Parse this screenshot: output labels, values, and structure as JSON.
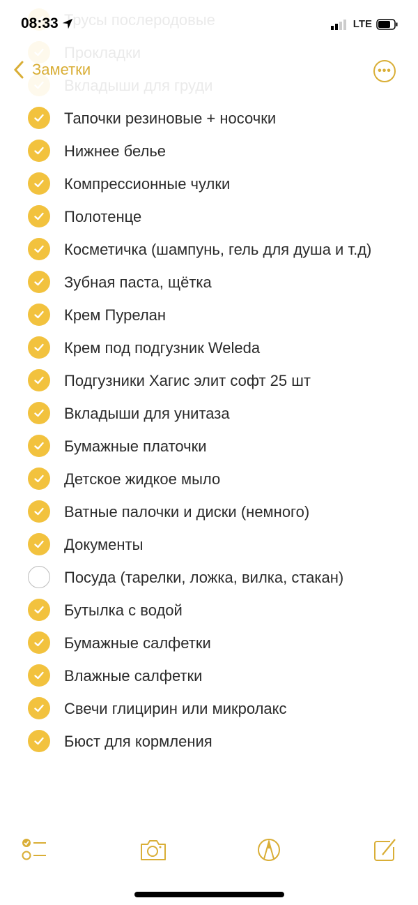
{
  "status": {
    "time": "08:33",
    "network": "LTE"
  },
  "nav": {
    "back_label": "Заметки"
  },
  "colors": {
    "accent": "#D9AE36",
    "checked": "#F2C23E"
  },
  "items": [
    {
      "text": "Трусы послеродовые",
      "checked": true
    },
    {
      "text": "Прокладки",
      "checked": true
    },
    {
      "text": "Вкладыши для груди",
      "checked": true
    },
    {
      "text": "Тапочки резиновые + носочки",
      "checked": true
    },
    {
      "text": "Нижнее белье",
      "checked": true
    },
    {
      "text": "Компрессионные чулки",
      "checked": true
    },
    {
      "text": "Полотенце",
      "checked": true
    },
    {
      "text": "Косметичка (шампунь, гель для душа и т.д)",
      "checked": true
    },
    {
      "text": "Зубная паста, щётка",
      "checked": true
    },
    {
      "text": "Крем Пурелан",
      "checked": true
    },
    {
      "text": "Крем под подгузник Weleda",
      "checked": true
    },
    {
      "text": "Подгузники Хагис элит софт 25 шт",
      "checked": true
    },
    {
      "text": "Вкладыши для унитаза",
      "checked": true
    },
    {
      "text": "Бумажные платочки",
      "checked": true
    },
    {
      "text": "Детское жидкое мыло",
      "checked": true
    },
    {
      "text": "Ватные палочки и диски (немного)",
      "checked": true
    },
    {
      "text": "Документы",
      "checked": true
    },
    {
      "text": "Посуда (тарелки, ложка, вилка, стакан)",
      "checked": false
    },
    {
      "text": "Бутылка с водой",
      "checked": true
    },
    {
      "text": "Бумажные салфетки",
      "checked": true
    },
    {
      "text": "Влажные салфетки",
      "checked": true
    },
    {
      "text": "Свечи глицирин или микролакс",
      "checked": true
    },
    {
      "text": "Бюст для кормления",
      "checked": true
    }
  ],
  "toolbar": [
    "checklist-icon",
    "camera-icon",
    "markup-icon",
    "compose-icon"
  ]
}
